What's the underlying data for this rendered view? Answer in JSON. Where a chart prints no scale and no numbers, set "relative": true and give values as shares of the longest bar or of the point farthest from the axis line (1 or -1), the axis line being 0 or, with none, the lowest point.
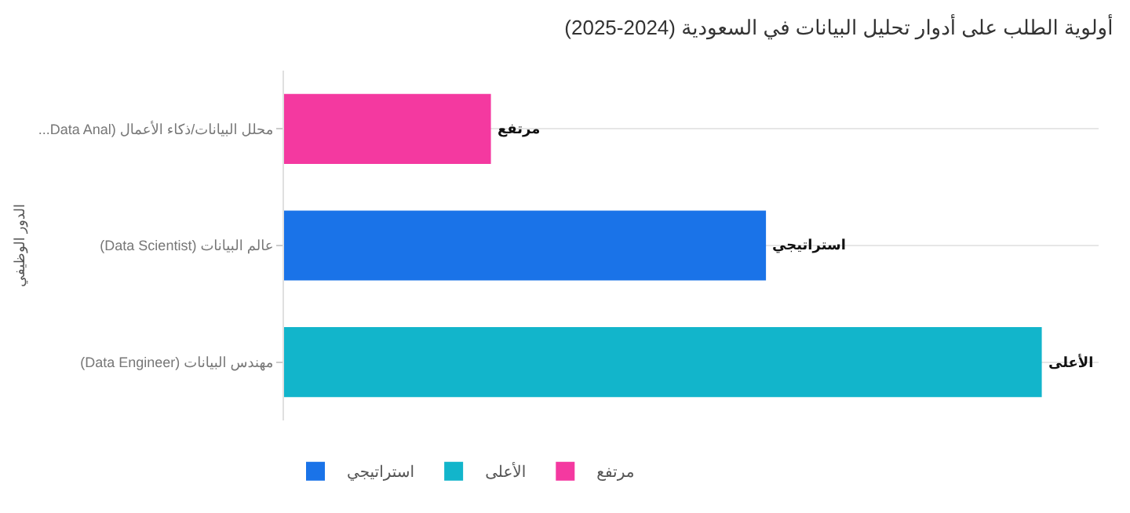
{
  "chart_data": {
    "type": "bar",
    "orientation": "horizontal",
    "relative": true,
    "title": "(2025-2024) أولوية الطلب على أدوار تحليل البيانات في السعودية",
    "ylabel": "الدور الوظيفي",
    "categories": [
      "...Data Anal) محلل البيانات/ذكاء الأعمال",
      "(Data Scientist) عالم البيانات",
      "(Data Engineer) مهندس البيانات"
    ],
    "series": [
      {
        "name": "استراتيجي",
        "color": "#1a73e8",
        "values": [
          null,
          0.636,
          null
        ]
      },
      {
        "name": "الأعلى",
        "color": "#12b5cb",
        "values": [
          null,
          null,
          1
        ]
      },
      {
        "name": "مرتفع",
        "color": "#f439a0",
        "values": [
          0.273,
          null,
          null
        ]
      }
    ],
    "annotations": [
      {
        "text": "مرتفع",
        "x": 0.273,
        "y": "...Data Anal) محلل البيانات/ذكاء الأعمال"
      },
      {
        "text": "استراتيجي",
        "x": 0.636,
        "y": "(Data Scientist) عالم البيانات"
      },
      {
        "text": "الأعلى",
        "x": 1,
        "y": "(Data Engineer) مهندس البيانات"
      }
    ],
    "grid": "y",
    "legend": "bottom left"
  }
}
